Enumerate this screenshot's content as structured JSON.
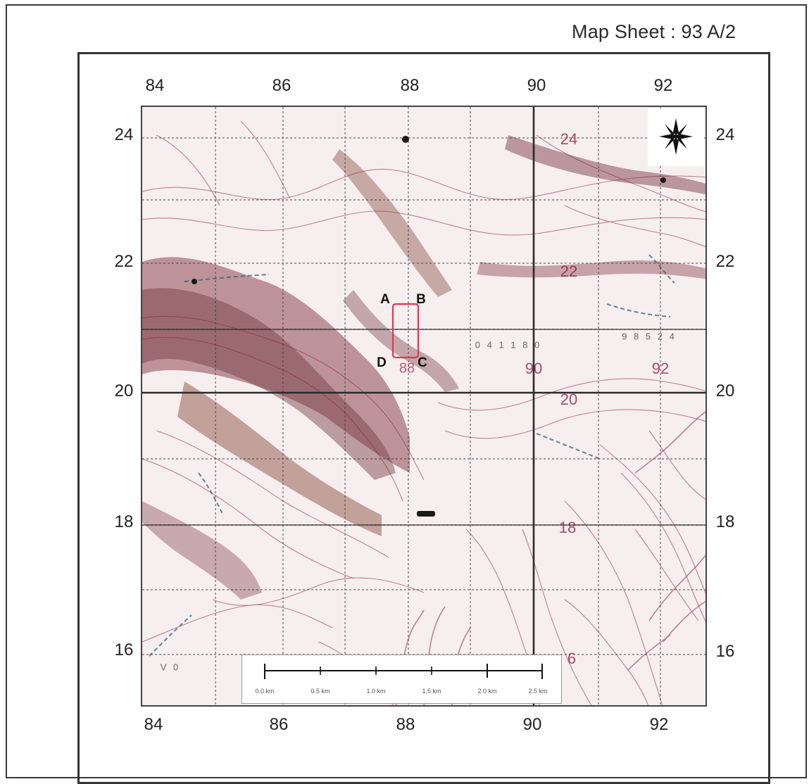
{
  "header": {
    "map_sheet_label": "Map Sheet : 93 A/2"
  },
  "grid": {
    "eastings": [
      "84",
      "86",
      "88",
      "90",
      "92"
    ],
    "northings": [
      "24",
      "22",
      "20",
      "18",
      "16"
    ]
  },
  "study_area": {
    "corners": {
      "a": "A",
      "b": "B",
      "c": "C",
      "d": "D"
    },
    "highlight_color": "#e8324f"
  },
  "spot_labels": {
    "s24": "24",
    "s22": "22",
    "s90": "90",
    "s92": "92",
    "s20": "20",
    "s18": "18",
    "s6": "6",
    "s88": "88"
  },
  "map_annotations": {
    "grid_numbers": "0 4 1 1 8 0",
    "grid_numbers_right": "9 8 5 2 4",
    "lower_left": "V 0"
  },
  "scale_bar": {
    "labels": [
      "0.0 km",
      "0.5 km",
      "1.0 km",
      "1.5 km",
      "2.0 km",
      "2.5 km"
    ]
  },
  "north_arrow": {
    "icon": "compass-star-icon"
  },
  "colors": {
    "contour": "#8b2a3c",
    "terrain_dark": "#6b1f28",
    "terrain_brown": "#7a3a24",
    "water": "#2f5f7a",
    "grid_line": "#2b2b2b"
  }
}
